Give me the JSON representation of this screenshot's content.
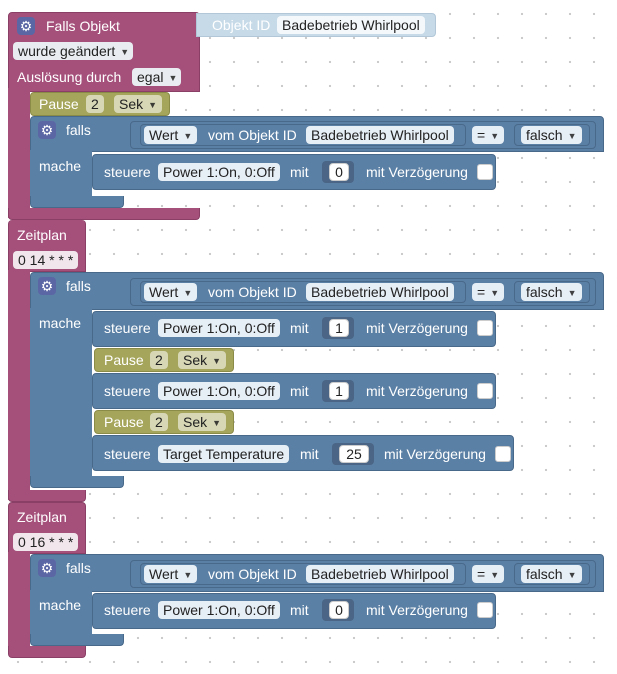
{
  "trigger": {
    "title": "Falls Objekt",
    "object_label": "Objekt ID",
    "object_value": "Badebetrieb Whirlpool",
    "changed": "wurde geändert",
    "trigger_by": "Auslösung durch",
    "trigger_value": "egal"
  },
  "pause1": {
    "label": "Pause",
    "value": "2",
    "unit": "Sek"
  },
  "if_block": {
    "falls": "falls",
    "mache": "mache",
    "wert": "Wert",
    "vom_objekt": "vom Objekt ID",
    "object_value": "Badebetrieb Whirlpool",
    "op": "=",
    "cmp": "falsch"
  },
  "control": {
    "steuere": "steuere",
    "power": "Power 1:On, 0:Off",
    "target_temp": "Target Temperature",
    "mit": "mit",
    "delay": "mit Verzögerung"
  },
  "sched1": {
    "title": "Zeitplan",
    "cron": "0 14 * * *",
    "v1": "0"
  },
  "sched2": {
    "power_v1": "1",
    "pause_label": "Pause",
    "pause_value": "2",
    "pause_unit": "Sek",
    "power_v2": "1",
    "temp_value": "25"
  },
  "sched3": {
    "title": "Zeitplan",
    "cron": "0 16 * * *",
    "v1": "0"
  },
  "colors": {
    "event": "#a5507b",
    "logic": "#5b80a5",
    "timing": "#a5a55b",
    "object_ref": "#c6dae8"
  }
}
